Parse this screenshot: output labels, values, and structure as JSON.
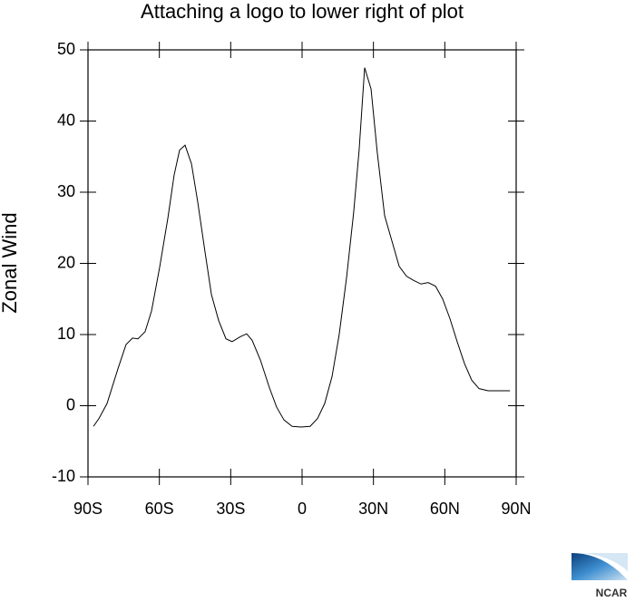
{
  "chart_data": {
    "type": "line",
    "title": "Attaching a logo to lower right of plot",
    "y_label": "Zonal Wind",
    "x": [
      -87.7,
      -85.4,
      -82,
      -77.4,
      -74,
      -71.3,
      -69,
      -66,
      -63.3,
      -59.9,
      -56.4,
      -53.8,
      -51.5,
      -49.2,
      -46.5,
      -43.9,
      -40.8,
      -38.1,
      -35.1,
      -32,
      -29.4,
      -25.9,
      -23.3,
      -21,
      -17.5,
      -13.7,
      -10.7,
      -7.6,
      -4.2,
      -0.4,
      3.4,
      6.5,
      9.5,
      12.6,
      15.6,
      18.7,
      21.7,
      24,
      26.3,
      29,
      31.6,
      34.7,
      37.8,
      40.8,
      43.9,
      46.9,
      50,
      53,
      56.1,
      59.1,
      62.2,
      65.2,
      68.3,
      71.3,
      74.4,
      78.2,
      82.8,
      87.4
    ],
    "series": [
      {
        "color": "#000000",
        "values": [
          -2.9,
          -1.8,
          0.3,
          5.2,
          8.6,
          9.5,
          9.4,
          10.4,
          13.3,
          19.4,
          26.4,
          32.4,
          35.9,
          36.6,
          34,
          28.7,
          21.6,
          15.6,
          12,
          9.4,
          9,
          9.7,
          10.1,
          9.2,
          6.4,
          2.5,
          -0.2,
          -2,
          -2.9,
          -3,
          -2.9,
          -1.8,
          0.3,
          4.1,
          10,
          18,
          27.2,
          36,
          47.5,
          44.5,
          35.6,
          26.7,
          23.1,
          19.6,
          18.2,
          17.6,
          17.1,
          17.3,
          16.8,
          15,
          12.2,
          9,
          5.9,
          3.6,
          2.4,
          2.1,
          2.1,
          2.1
        ]
      }
    ],
    "xlim": [
      -90,
      90
    ],
    "xticks": [
      {
        "value": -90,
        "label": "90S"
      },
      {
        "value": -60,
        "label": "60S"
      },
      {
        "value": -30,
        "label": "30S"
      },
      0,
      {
        "value": 30,
        "label": "30N"
      },
      {
        "value": 60,
        "label": "60N"
      },
      {
        "value": 90,
        "label": "90N"
      }
    ],
    "ylim": [
      -10,
      50
    ],
    "yticks": [
      -10,
      0,
      10,
      20,
      30,
      40,
      50
    ]
  },
  "logo": {
    "text": "NCAR"
  }
}
